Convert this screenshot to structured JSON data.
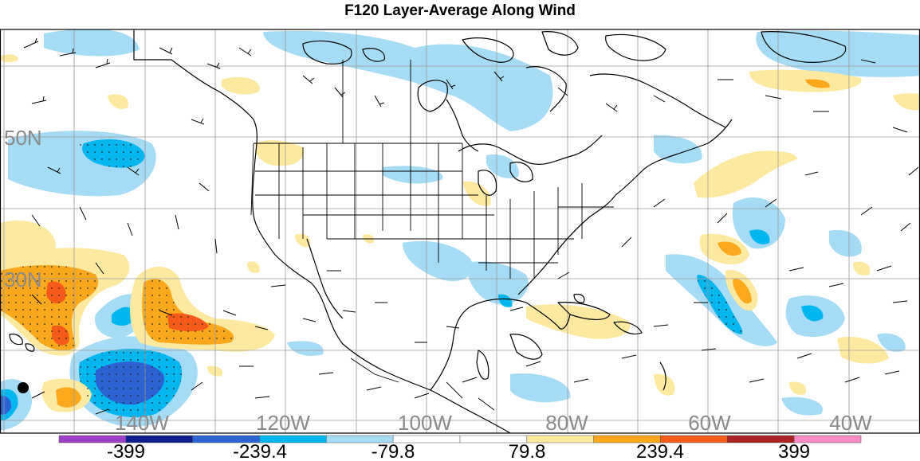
{
  "title": "F120 Layer-Average Along Wind",
  "lat_labels": [
    "50N",
    "30N"
  ],
  "lon_labels": [
    "140W",
    "120W",
    "100W",
    "80W",
    "60W",
    "40W"
  ],
  "colorbar": {
    "colors": [
      "#9e3fc5",
      "#0c1f8c",
      "#2d62d2",
      "#00b6ef",
      "#a6dbf5",
      "#ffffff",
      "#ffffff",
      "#fdeaa0",
      "#fca81c",
      "#f65a1a",
      "#ab2424",
      "#f58cc8"
    ],
    "labels": [
      "-399",
      "-239.4",
      "-79.8",
      "79.8",
      "239.4",
      "399"
    ]
  }
}
